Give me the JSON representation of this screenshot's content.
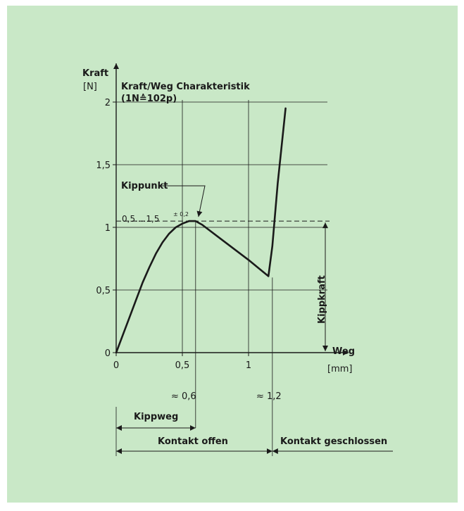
{
  "chart_data": {
    "type": "line",
    "title": "Kraft/Weg Charakteristik",
    "subtitle": "(1N≙102p)",
    "ylabel": "Kraft",
    "yunit": "[N]",
    "xlabel": "Weg",
    "xunit": "[mm]",
    "xlim": [
      0,
      1.8
    ],
    "ylim": [
      0,
      2.1
    ],
    "xticks": [
      0,
      0.5,
      1
    ],
    "xtick_labels": [
      "0",
      "0,5",
      "1"
    ],
    "yticks": [
      0,
      0.5,
      1,
      1.5,
      2
    ],
    "ytick_labels": [
      "0",
      "0,5",
      "1",
      "1,5",
      "2"
    ],
    "grid": true,
    "series": [
      {
        "x": [
          0,
          0.05,
          0.1,
          0.15,
          0.2,
          0.25,
          0.3,
          0.35,
          0.4,
          0.45,
          0.5,
          0.55,
          0.6,
          0.65,
          0.8,
          1.0,
          1.15,
          1.18,
          1.22,
          1.28
        ],
        "y": [
          0,
          0.14,
          0.28,
          0.42,
          0.56,
          0.68,
          0.79,
          0.88,
          0.95,
          1.0,
          1.03,
          1.05,
          1.05,
          1.02,
          0.9,
          0.74,
          0.61,
          0.85,
          1.35,
          1.95
        ]
      }
    ],
    "annotations": {
      "kippunkt": "Kippunkt",
      "kippunkt_range": "0,5....1,5",
      "kippunkt_tolerance": "± 0,2",
      "kippunkt_x": 0.6,
      "kippunkt_y": 1.05,
      "kippkraft": "Kippkraft",
      "approx_kipp": "≈ 0,6",
      "approx_kontakt": "≈ 1,2",
      "kontakt_x": 1.18,
      "kippweg": "Kippweg",
      "kontakt_offen": "Kontakt  offen",
      "kontakt_geschlossen": "Kontakt  geschlossen"
    }
  }
}
